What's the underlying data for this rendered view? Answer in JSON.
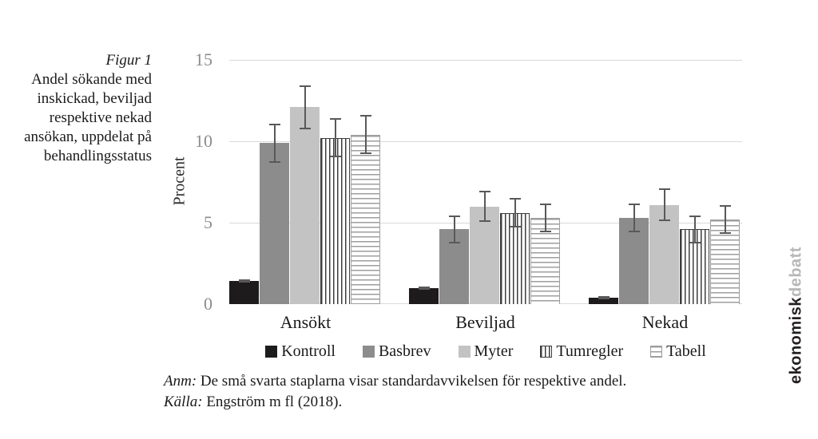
{
  "figure": {
    "label": "Figur 1",
    "title_lines": [
      "Andel sökande med",
      "inskickad, beviljad",
      "respektive nekad",
      "ansökan, uppdelat på",
      "behandlingsstatus"
    ]
  },
  "chart_data": {
    "type": "bar",
    "title": "Figur 1. Andel sökande med inskickad, beviljad respektive nekad ansökan, uppdelat på behandlingsstatus",
    "categories": [
      "Ansökt",
      "Beviljad",
      "Nekad"
    ],
    "series": [
      {
        "name": "Kontroll",
        "values": [
          1.4,
          1.0,
          0.4
        ],
        "errors": [
          0.1,
          0.1,
          0.1
        ],
        "pattern": "solid",
        "fill": "#1e1b1c"
      },
      {
        "name": "Basbrev",
        "values": [
          9.9,
          4.6,
          5.3
        ],
        "errors": [
          1.2,
          0.85,
          0.9
        ],
        "pattern": "solid",
        "fill": "#8c8c8c"
      },
      {
        "name": "Myter",
        "values": [
          12.1,
          6.0,
          6.1
        ],
        "errors": [
          1.35,
          0.95,
          1.0
        ],
        "pattern": "solid",
        "fill": "#c3c3c3"
      },
      {
        "name": "Tumregler",
        "values": [
          10.2,
          5.6,
          4.6
        ],
        "errors": [
          1.2,
          0.9,
          0.85
        ],
        "pattern": "vstripe",
        "stripe_color": "#3d3d3d"
      },
      {
        "name": "Tabell",
        "values": [
          10.4,
          5.3,
          5.2
        ],
        "errors": [
          1.2,
          0.9,
          0.9
        ],
        "pattern": "hstripe",
        "stripe_color": "#9e9e9e"
      }
    ],
    "xlabel": "",
    "ylabel": "Procent",
    "yticks": [
      0,
      5,
      10,
      15
    ],
    "ylim": [
      0,
      15
    ],
    "grid": true,
    "legend_position": "bottom",
    "error_color": "#595959",
    "grid_color": "#d9d9d9",
    "tick_color": "#8c8c8c"
  },
  "notes": {
    "anm_label": "Anm:",
    "anm_text": "De små svarta staplarna visar standardavvikelsen för respektive andel.",
    "source_label": "Källa:",
    "source_text": "Engström m fl (2018)."
  },
  "branding": {
    "black": "ekonomisk",
    "gray": "debatt"
  }
}
